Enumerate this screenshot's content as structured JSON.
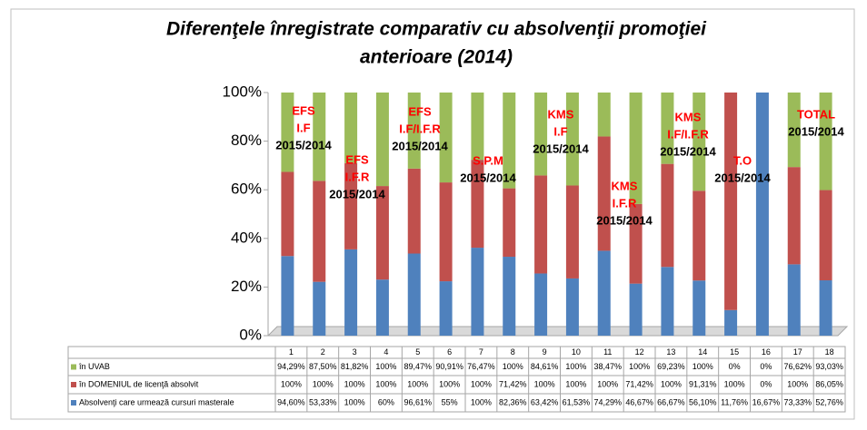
{
  "chart_data": {
    "type": "bar",
    "stacked": "percent",
    "title": [
      "Diferenţele înregistrate comparativ cu absolvenţii promoţiei",
      "anterioare (2014)"
    ],
    "categories": [
      "1",
      "2",
      "3",
      "4",
      "5",
      "6",
      "7",
      "8",
      "9",
      "10",
      "11",
      "12",
      "13",
      "14",
      "15",
      "16",
      "17",
      "18"
    ],
    "series": [
      {
        "name": "în UVAB",
        "color": "#9bbb59",
        "values": [
          94.29,
          87.5,
          81.82,
          100,
          89.47,
          90.91,
          76.47,
          100,
          84.61,
          100,
          38.47,
          100,
          69.23,
          100,
          0,
          0,
          76.62,
          93.03
        ],
        "value_labels": [
          "94,29%",
          "87,50%",
          "81,82%",
          "100%",
          "89,47%",
          "90,91%",
          "76,47%",
          "100%",
          "84,61%",
          "100%",
          "38,47%",
          "100%",
          "69,23%",
          "100%",
          "0%",
          "0%",
          "76,62%",
          "93,03%"
        ]
      },
      {
        "name": "în  DOMENIUL de licenţă absolvit",
        "color": "#c0504d",
        "values": [
          100,
          100,
          100,
          100,
          100,
          100,
          100,
          71.42,
          100,
          100,
          100,
          71.42,
          100,
          91.31,
          100,
          0,
          100,
          86.05
        ],
        "value_labels": [
          "100%",
          "100%",
          "100%",
          "100%",
          "100%",
          "100%",
          "100%",
          "71,42%",
          "100%",
          "100%",
          "100%",
          "71,42%",
          "100%",
          "91,31%",
          "100%",
          "0%",
          "100%",
          "86,05%"
        ]
      },
      {
        "name": "Absolvenţi care urmează cursuri masterale",
        "color": "#4f81bd",
        "values": [
          94.6,
          53.33,
          100,
          60,
          96.61,
          55,
          100,
          82.36,
          63.42,
          61.53,
          74.29,
          46.67,
          66.67,
          56.1,
          11.76,
          16.67,
          73.33,
          52.76
        ],
        "value_labels": [
          "94,60%",
          "53,33%",
          "100%",
          "60%",
          "96,61%",
          "55%",
          "100%",
          "82,36%",
          "63,42%",
          "61,53%",
          "74,29%",
          "46,67%",
          "66,67%",
          "56,10%",
          "11,76%",
          "16,67%",
          "73,33%",
          "52,76%"
        ]
      }
    ],
    "ylim": [
      0,
      100
    ],
    "yticks": [
      {
        "value": 0,
        "label": "0%"
      },
      {
        "value": 20,
        "label": "20%"
      },
      {
        "value": 40,
        "label": "40%"
      },
      {
        "value": 60,
        "label": "60%"
      },
      {
        "value": 80,
        "label": "80%"
      },
      {
        "value": 100,
        "label": "100%"
      }
    ],
    "annotation_color": "#ff0000",
    "annotations": [
      {
        "label": [
          "EFS",
          "I.F"
        ],
        "period": "2015/2014"
      },
      {
        "label": [
          "EFS",
          "I.F.R"
        ],
        "period": "2015/2014"
      },
      {
        "label": [
          "EFS",
          "I.F/I.F.R"
        ],
        "period": "2015/2014"
      },
      {
        "label": [
          "S.P.M"
        ],
        "period": "2015/2014"
      },
      {
        "label": [
          "KMS",
          "I.F"
        ],
        "period": "2015/2014"
      },
      {
        "label": [
          "KMS",
          "I.F.R"
        ],
        "period": "2015/2014"
      },
      {
        "label": [
          "KMS",
          "I.F/I.F.R"
        ],
        "period": "2015/2014"
      },
      {
        "label": [
          "T.O"
        ],
        "period": "2015/2014"
      },
      {
        "label": [
          "TOTAL"
        ],
        "period": "2015/2014"
      }
    ]
  }
}
